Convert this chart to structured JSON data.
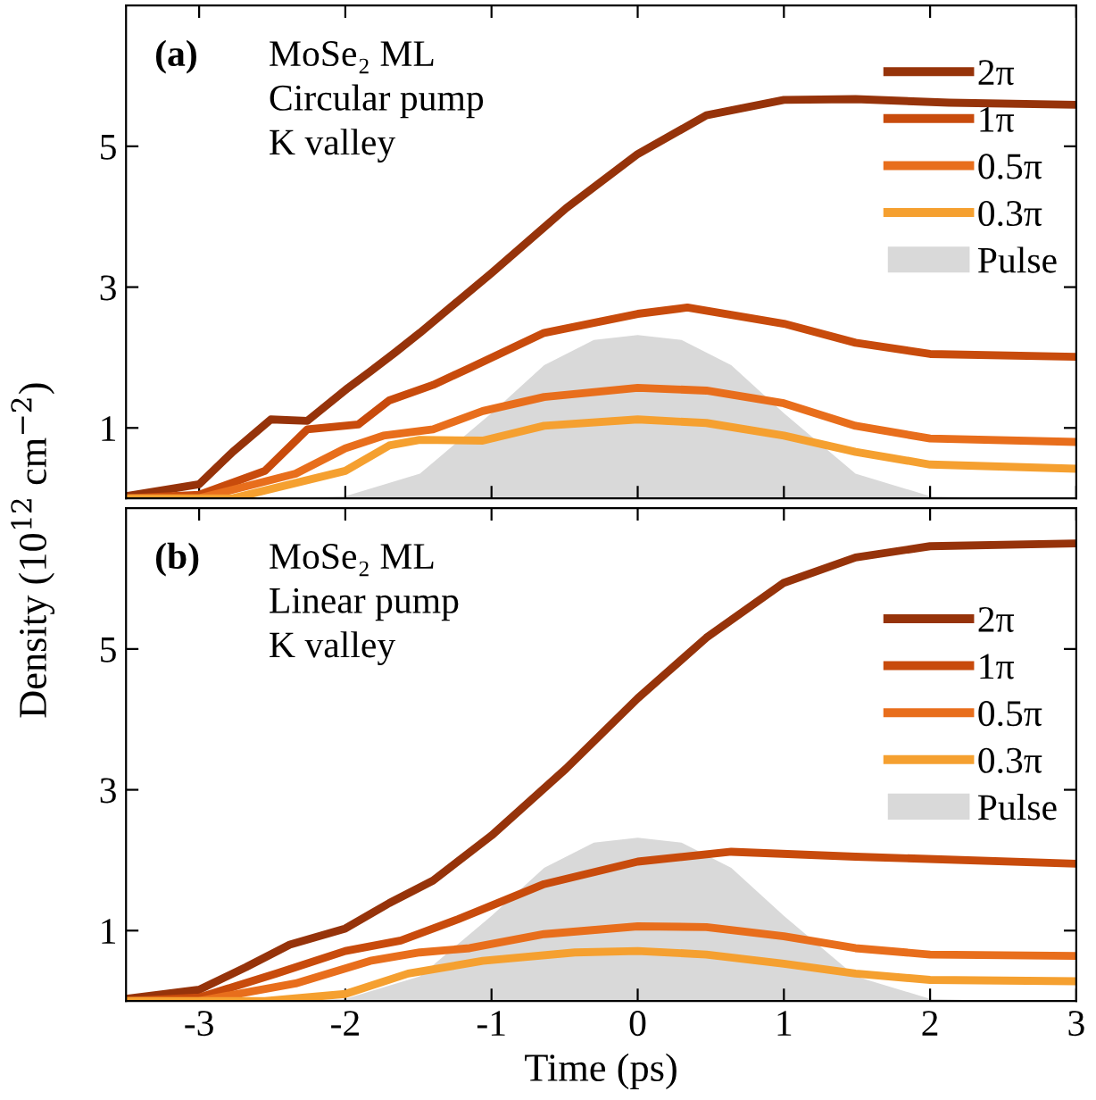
{
  "chart_data": [
    {
      "type": "line",
      "ylabel": "Density (10$^{12}$ cm$^{−2}$)",
      "annotations": [
        "(a)",
        "MoSe₂ ML",
        "Circular pump",
        "K valley"
      ],
      "xlim": [
        -3.5,
        3
      ],
      "xticks": [
        -3,
        -2,
        -1,
        0,
        1,
        2,
        3
      ],
      "ylim": [
        0,
        7
      ],
      "yticks": [
        1,
        3,
        5
      ],
      "tick_labels": "y",
      "legend": "top right",
      "grid": false,
      "series": [
        {
          "name": "Pulse",
          "type": "area",
          "color": "#d9d9d9",
          "x": [
            -2.5,
            -2,
            -1.49,
            -1,
            -0.64,
            -0.3,
            0,
            0.3,
            0.64,
            1,
            1.49,
            2,
            2.5
          ],
          "values": [
            0,
            0.03,
            0.35,
            1.21,
            1.89,
            2.25,
            2.32,
            2.25,
            1.89,
            1.21,
            0.35,
            0.03,
            0
          ]
        },
        {
          "name": "2π",
          "color": "#96330a",
          "x": [
            -3.5,
            -3,
            -2.77,
            -2.51,
            -2.26,
            -1.98,
            -1.83,
            -1.66,
            -1.49,
            -1.0,
            -0.49,
            0,
            0.47,
            1.0,
            1.49,
            2.13,
            3
          ],
          "values": [
            0.03,
            0.2,
            0.66,
            1.12,
            1.1,
            1.57,
            1.8,
            2.07,
            2.35,
            3.2,
            4.12,
            4.89,
            5.44,
            5.66,
            5.67,
            5.62,
            5.59
          ]
        },
        {
          "name": "1π",
          "color": "#c84b0c",
          "x": [
            -3.5,
            -3,
            -2.55,
            -2.26,
            -1.91,
            -1.7,
            -1.4,
            -1.15,
            -0.64,
            0,
            0.34,
            1,
            1.49,
            2.0,
            3
          ],
          "values": [
            0,
            0.05,
            0.39,
            0.98,
            1.05,
            1.39,
            1.61,
            1.85,
            2.35,
            2.62,
            2.71,
            2.48,
            2.21,
            2.05,
            2.01
          ]
        },
        {
          "name": "0.5π",
          "color": "#e86e1c",
          "x": [
            -3.5,
            -3,
            -2.34,
            -2.0,
            -1.74,
            -1.4,
            -1.06,
            -0.64,
            0,
            0.47,
            1,
            1.49,
            2.0,
            3
          ],
          "values": [
            0,
            0,
            0.35,
            0.71,
            0.89,
            0.98,
            1.24,
            1.44,
            1.57,
            1.53,
            1.35,
            1.03,
            0.85,
            0.8
          ]
        },
        {
          "name": "0.3π",
          "color": "#f5a030",
          "x": [
            -3.5,
            -2.77,
            -2.0,
            -1.7,
            -1.49,
            -1.06,
            -0.64,
            0,
            0.47,
            1,
            1.49,
            2.0,
            3
          ],
          "values": [
            0,
            0,
            0.39,
            0.75,
            0.83,
            0.82,
            1.03,
            1.12,
            1.07,
            0.89,
            0.66,
            0.48,
            0.42
          ]
        }
      ]
    },
    {
      "type": "line",
      "xlabel": "Time (ps)",
      "annotations": [
        "(b)",
        "MoSe₂ ML",
        "Linear pump",
        "K valley"
      ],
      "xlim": [
        -3.5,
        3
      ],
      "xticks": [
        -3,
        -2,
        -1,
        0,
        1,
        2,
        3
      ],
      "ylim": [
        0,
        7
      ],
      "yticks": [
        1,
        3,
        5
      ],
      "legend": "right",
      "grid": false,
      "series": [
        {
          "name": "Pulse",
          "type": "area",
          "color": "#d9d9d9",
          "x": [
            -2.5,
            -2,
            -1.49,
            -1,
            -0.64,
            -0.3,
            0,
            0.3,
            0.64,
            1,
            1.49,
            2,
            2.5
          ],
          "values": [
            0,
            0.03,
            0.35,
            1.21,
            1.89,
            2.25,
            2.32,
            2.25,
            1.89,
            1.21,
            0.35,
            0.03,
            0
          ]
        },
        {
          "name": "2π",
          "color": "#96330a",
          "x": [
            -3.5,
            -3,
            -2.68,
            -2.38,
            -2.0,
            -1.7,
            -1.4,
            -1.0,
            -0.49,
            0,
            0.47,
            1,
            1.49,
            2.0,
            3
          ],
          "values": [
            0.03,
            0.16,
            0.48,
            0.8,
            1.03,
            1.39,
            1.71,
            2.35,
            3.3,
            4.3,
            5.16,
            5.94,
            6.3,
            6.46,
            6.5
          ]
        },
        {
          "name": "1π",
          "color": "#c84b0c",
          "x": [
            -3.5,
            -3,
            -2.47,
            -2.0,
            -1.62,
            -1.23,
            -0.64,
            0,
            0.64,
            1.49,
            3
          ],
          "values": [
            0,
            0.05,
            0.39,
            0.71,
            0.86,
            1.16,
            1.66,
            1.98,
            2.12,
            2.05,
            1.95
          ]
        },
        {
          "name": "0.5π",
          "color": "#e86e1c",
          "x": [
            -3.5,
            -3,
            -2.34,
            -1.83,
            -1.49,
            -1.15,
            -0.64,
            0,
            0.47,
            1,
            1.49,
            2.0,
            3
          ],
          "values": [
            0,
            0,
            0.25,
            0.57,
            0.69,
            0.75,
            0.95,
            1.06,
            1.05,
            0.92,
            0.75,
            0.66,
            0.64
          ]
        },
        {
          "name": "0.3π",
          "color": "#f5a030",
          "x": [
            -3.5,
            -2.55,
            -2.0,
            -1.57,
            -1.06,
            -0.43,
            0,
            0.47,
            1,
            1.49,
            2.0,
            3
          ],
          "values": [
            0,
            0,
            0.1,
            0.39,
            0.57,
            0.69,
            0.71,
            0.66,
            0.53,
            0.39,
            0.3,
            0.28
          ]
        }
      ]
    }
  ]
}
